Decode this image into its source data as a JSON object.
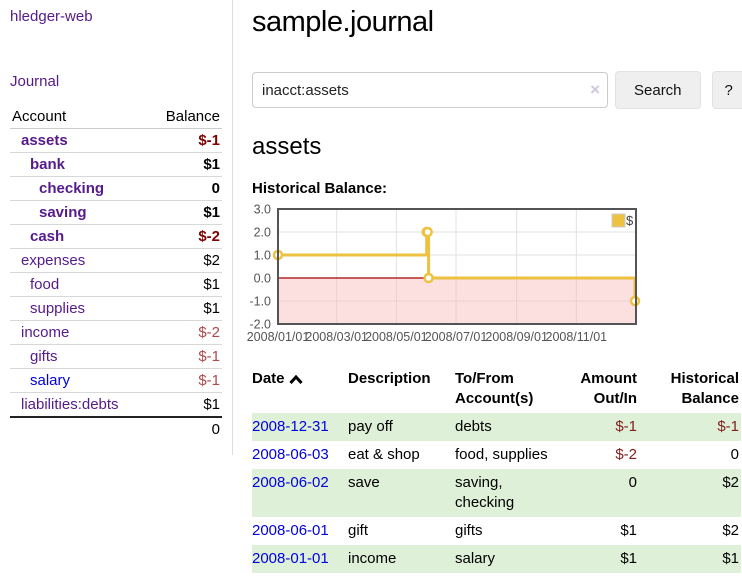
{
  "app": {
    "title": "hledger-web",
    "nav_journal": "Journal"
  },
  "sidebar": {
    "header": {
      "account": "Account",
      "balance": "Balance"
    },
    "accounts": [
      {
        "name": "assets",
        "balance": "$-1"
      },
      {
        "name": "bank",
        "balance": "$1"
      },
      {
        "name": "checking",
        "balance": "0"
      },
      {
        "name": "saving",
        "balance": "$1"
      },
      {
        "name": "cash",
        "balance": "$-2"
      },
      {
        "name": "expenses",
        "balance": "$2"
      },
      {
        "name": "food",
        "balance": "$1"
      },
      {
        "name": "supplies",
        "balance": "$1"
      },
      {
        "name": "income",
        "balance": "$-2"
      },
      {
        "name": "gifts",
        "balance": "$-1"
      },
      {
        "name": "salary",
        "balance": "$-1"
      },
      {
        "name": "liabilities:debts",
        "balance": "$1"
      }
    ],
    "total": "0"
  },
  "header": {
    "title": "sample.journal"
  },
  "search": {
    "value": "inacct:assets",
    "clear_icon": "×",
    "button_label": "Search",
    "help_label": "?"
  },
  "account_page": {
    "heading": "assets",
    "chart_title": "Historical Balance:"
  },
  "chart_data": {
    "type": "line",
    "step": true,
    "title": "Historical Balance:",
    "series": [
      {
        "name": "$",
        "color": "#edc240",
        "points": [
          [
            "2008-01-01",
            1
          ],
          [
            "2008-06-01",
            2
          ],
          [
            "2008-06-02",
            2
          ],
          [
            "2008-06-03",
            0
          ],
          [
            "2008-12-31",
            -1
          ]
        ]
      }
    ],
    "ylim": [
      -2,
      3
    ],
    "yticks": [
      "3.0",
      "2.0",
      "1.0",
      "0.0",
      "-1.0",
      "-2.0"
    ],
    "xlim": [
      "2008-01-01",
      "2009-01-01"
    ],
    "xticks": [
      "2008/01/01",
      "2008/03/01",
      "2008/05/01",
      "2008/07/01",
      "2008/09/01",
      "2008/11/01"
    ],
    "grid_on": true,
    "legend_position": "top-right",
    "grid_color": "#e2e2e2",
    "border_color": "#545454",
    "tick_label_color": "#545454",
    "negative_region_color": "#f9b9b9",
    "zero_line_color": "#a40000"
  },
  "register": {
    "columns": {
      "date": "Date",
      "description": "Description",
      "accounts": "To/From Account(s)",
      "amount": "Amount Out/In",
      "balance": "Historical Balance"
    },
    "rows": [
      {
        "date": "2008-12-31",
        "description": "pay off",
        "accounts": "debts",
        "amount": "$-1",
        "balance": "$-1"
      },
      {
        "date": "2008-06-03",
        "description": "eat & shop",
        "accounts": "food, supplies",
        "amount": "$-2",
        "balance": "0"
      },
      {
        "date": "2008-06-02",
        "description": "save",
        "accounts": "saving, checking",
        "amount": "0",
        "balance": "$2"
      },
      {
        "date": "2008-06-01",
        "description": "gift",
        "accounts": "gifts",
        "amount": "$1",
        "balance": "$2"
      },
      {
        "date": "2008-01-01",
        "description": "income",
        "accounts": "salary",
        "amount": "$1",
        "balance": "$1"
      }
    ]
  }
}
